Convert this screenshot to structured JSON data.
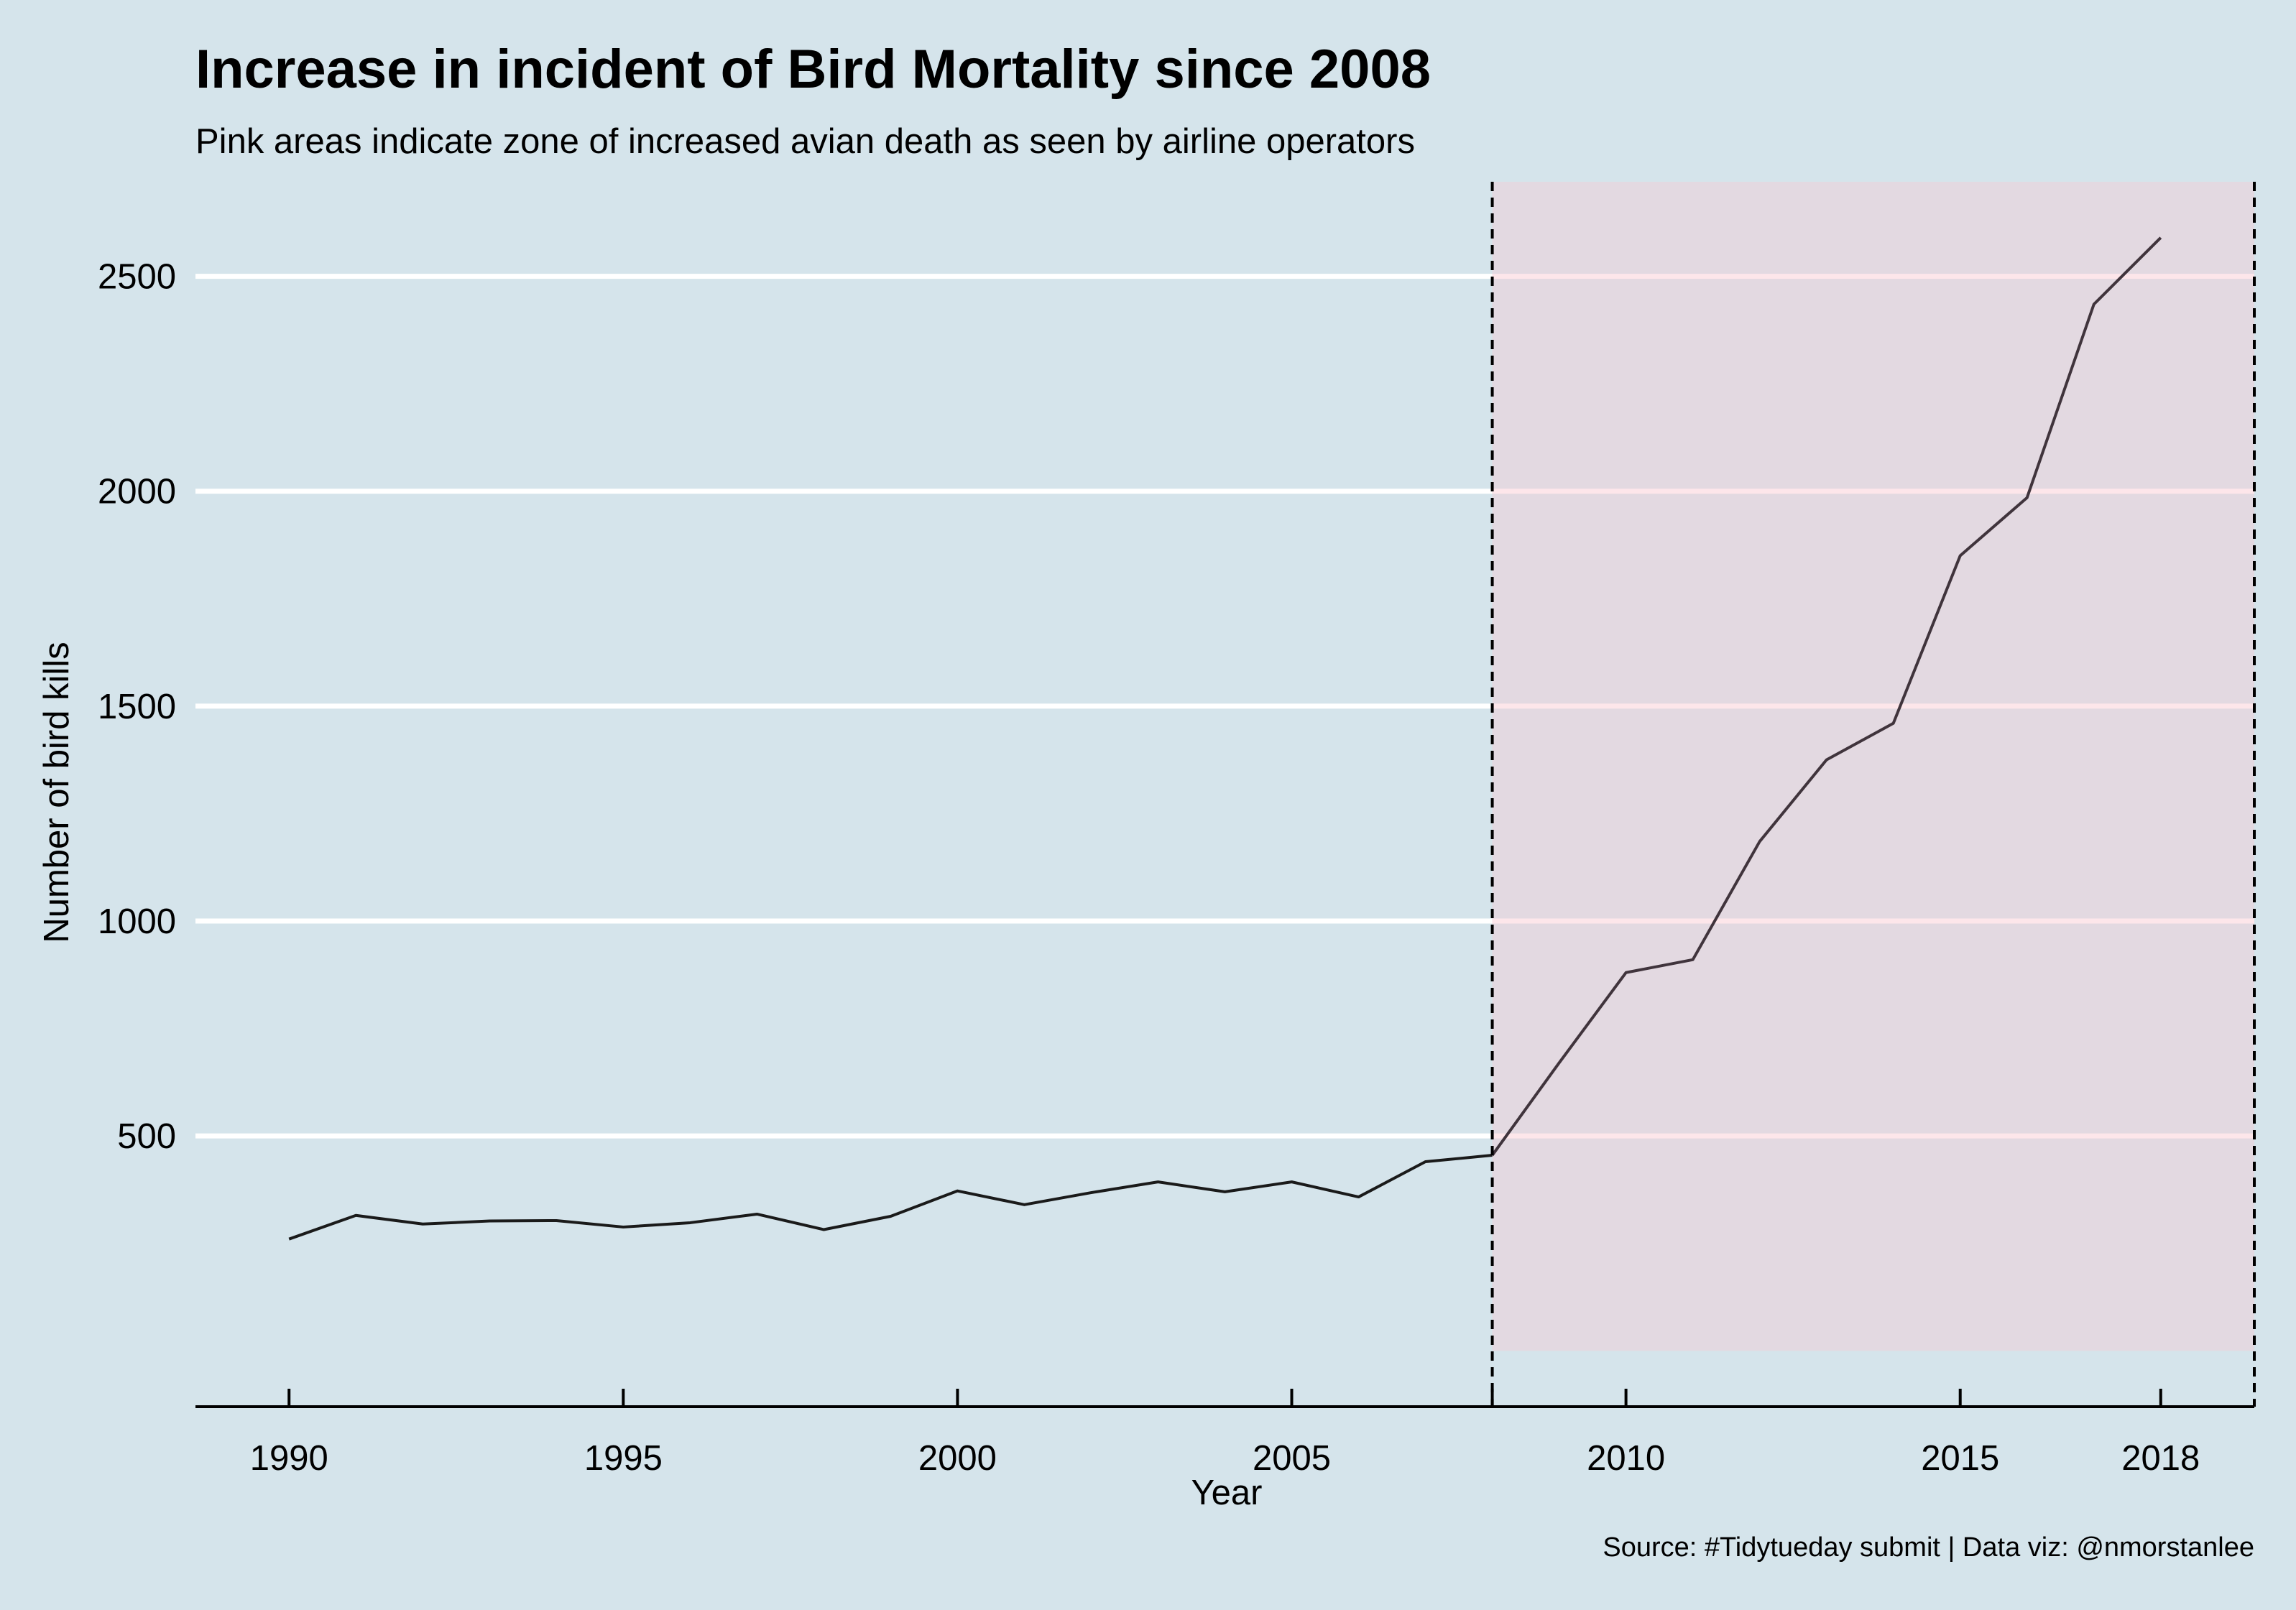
{
  "chart_data": {
    "type": "line",
    "title": "Increase in incident of Bird Mortality since 2008",
    "subtitle": "Pink areas indicate zone of increased avian death as seen by airline operators",
    "xlabel": "Year",
    "ylabel": "Number of bird kills",
    "caption": "Source: #Tidytueday submit | Data viz: @nmorstanlee",
    "x": [
      1990,
      1991,
      1992,
      1993,
      1994,
      1995,
      1996,
      1997,
      1998,
      1999,
      2000,
      2001,
      2002,
      2003,
      2004,
      2005,
      2006,
      2007,
      2008,
      2009,
      2010,
      2011,
      2012,
      2013,
      2014,
      2015,
      2016,
      2017,
      2018
    ],
    "series": [
      {
        "values": [
          260,
          315,
          295,
          302,
          303,
          288,
          298,
          318,
          282,
          313,
          372,
          340,
          368,
          393,
          370,
          393,
          358,
          440,
          455,
          670,
          880,
          910,
          1185,
          1375,
          1460,
          1850,
          1985,
          2435,
          2590
        ]
      }
    ],
    "xlim": [
      1988.6,
      2019.4
    ],
    "ylim": [
      -130,
      2720
    ],
    "x_ticks": [
      1990,
      1995,
      2000,
      2005,
      2008,
      2010,
      2015,
      2018
    ],
    "x_tick_labels": [
      "1990",
      "1995",
      "2000",
      "2005",
      "",
      "2010",
      "2015",
      "2018"
    ],
    "y_ticks": [
      500,
      1000,
      1500,
      2000,
      2500
    ],
    "y_tick_labels": [
      "500",
      "1000",
      "1500",
      "2000",
      "2500"
    ],
    "highlight_region": {
      "x_start": 2008,
      "x_end": 2019.4,
      "y_start": 0,
      "y_end": 2720
    },
    "reference_lines": [
      2008,
      2019.4
    ],
    "grid": "horizontal major",
    "legend": "none",
    "colors": {
      "background": "#d5e4eb",
      "highlight": "#e3d9e1",
      "grid": "#ffffff",
      "grid_in_highlight": "#fde6ea",
      "line": "#1a1a1a",
      "line_in_highlight": "#40343c",
      "axis": "#000000"
    }
  }
}
